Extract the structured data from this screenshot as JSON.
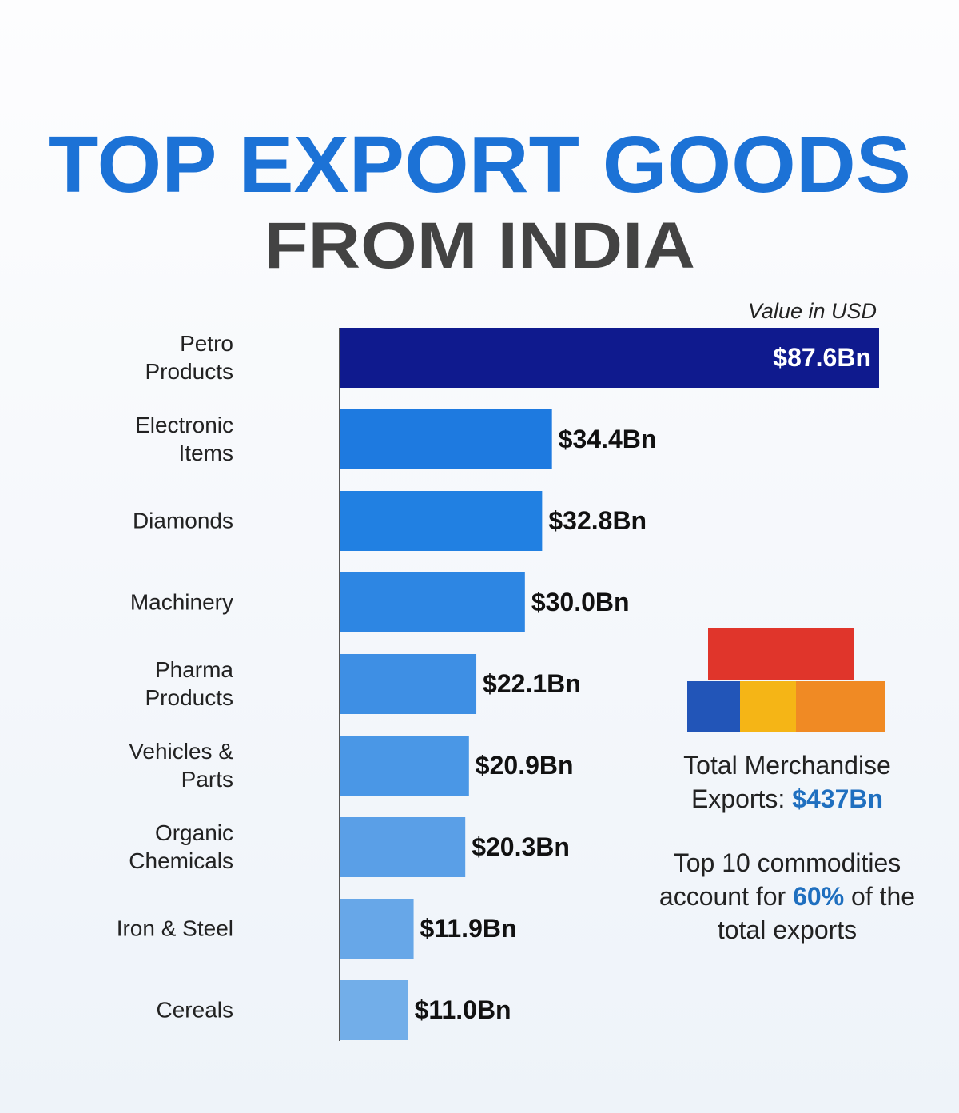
{
  "chart_data": {
    "type": "bar",
    "title": "TOP EXPORT GOODS",
    "subtitle": "FROM INDIA",
    "value_axis_label": "Value in USD",
    "categories": [
      "Petro Products",
      "Electronic Items",
      "Diamonds",
      "Machinery",
      "Pharma Products",
      "Vehicles & Parts",
      "Organic Chemicals",
      "Iron & Steel",
      "Cereals"
    ],
    "values": [
      87.6,
      34.4,
      32.8,
      30.0,
      22.1,
      20.9,
      20.3,
      11.9,
      11.0
    ],
    "value_labels": [
      "$87.6Bn",
      "$34.4Bn",
      "$32.8Bn",
      "$30.0Bn",
      "$22.1Bn",
      "$20.9Bn",
      "$20.3Bn",
      "$11.9Bn",
      "$11.0Bn"
    ],
    "colors": [
      "#0f1a8e",
      "#1e7ae0",
      "#2180e2",
      "#2d86e3",
      "#3e8fe4",
      "#4a97e6",
      "#5a9fe7",
      "#67a7e8",
      "#72aee9"
    ],
    "xlim": [
      0,
      87.6
    ],
    "annotations": {
      "total_text": "Total Merchandise Exports:",
      "total_value": "$437Bn",
      "share_text_1": "Top 10 commodities account for",
      "share_value": "60%",
      "share_text_2": "of the total exports"
    }
  }
}
